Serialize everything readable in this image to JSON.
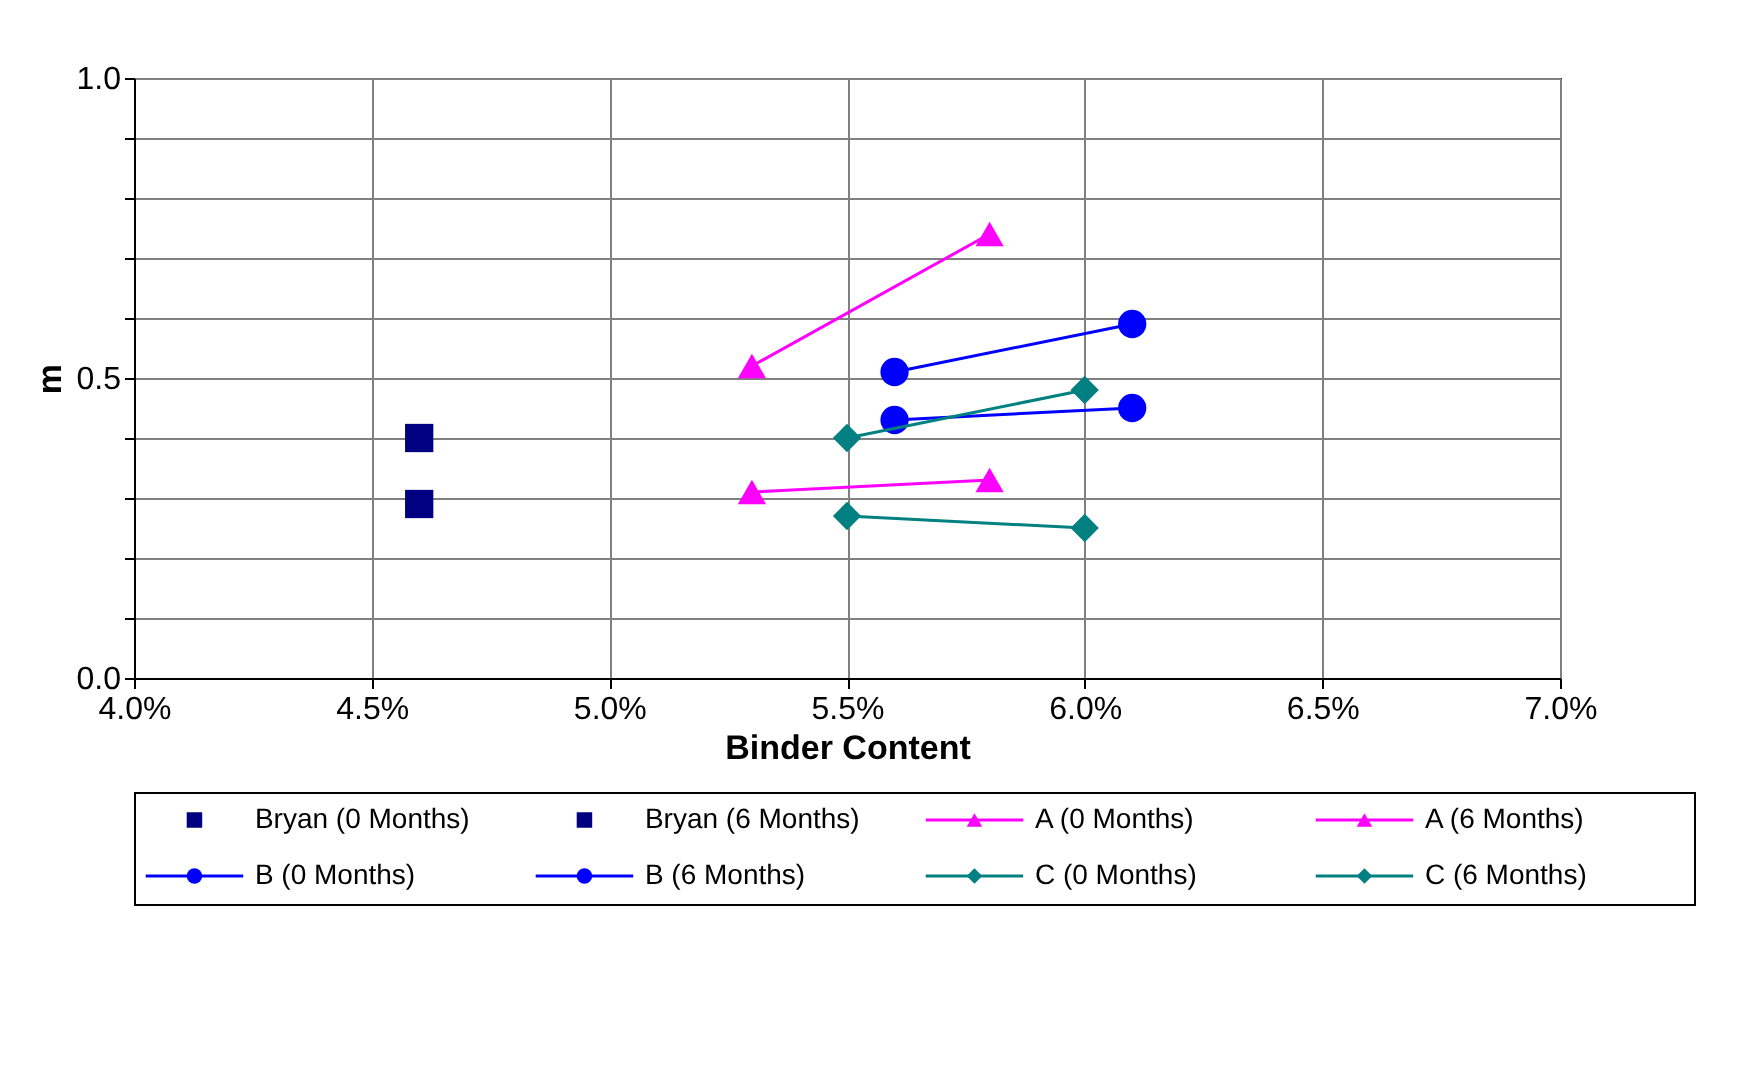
{
  "chart_data": {
    "type": "line",
    "xlabel": "Binder Content",
    "ylabel": "m",
    "xlim": [
      4.0,
      7.0
    ],
    "xticks": [
      {
        "value": 4.0,
        "label": "4.0%"
      },
      {
        "value": 4.5,
        "label": "4.5%"
      },
      {
        "value": 5.0,
        "label": "5.0%"
      },
      {
        "value": 5.5,
        "label": "5.5%"
      },
      {
        "value": 6.0,
        "label": "6.0%"
      },
      {
        "value": 6.5,
        "label": "6.5%"
      },
      {
        "value": 7.0,
        "label": "7.0%"
      }
    ],
    "ylim": [
      0,
      1
    ],
    "yticks": [
      {
        "value": 0.0,
        "label": "0.0"
      },
      {
        "value": 0.1,
        "label": null
      },
      {
        "value": 0.2,
        "label": null
      },
      {
        "value": 0.3,
        "label": null
      },
      {
        "value": 0.4,
        "label": null
      },
      {
        "value": 0.5,
        "label": "0.5"
      },
      {
        "value": 0.6,
        "label": null
      },
      {
        "value": 0.7,
        "label": null
      },
      {
        "value": 0.8,
        "label": null
      },
      {
        "value": 0.9,
        "label": null
      },
      {
        "value": 1.0,
        "label": "1.0"
      }
    ],
    "grid": true,
    "legend": "bottom",
    "line_style": "solid",
    "series": [
      {
        "name": "Bryan (0 Months)",
        "type": "scatter",
        "marker": "square",
        "color": "#000080",
        "x": [
          4.6
        ],
        "values": [
          0.4
        ]
      },
      {
        "name": "Bryan (6 Months)",
        "type": "scatter",
        "marker": "square",
        "color": "#000080",
        "x": [
          4.6
        ],
        "values": [
          0.29
        ]
      },
      {
        "name": "A (0 Months)",
        "marker": "triangle",
        "color": "#ff00ff",
        "x": [
          5.3,
          5.8
        ],
        "values": [
          0.52,
          0.74
        ]
      },
      {
        "name": "A (6 Months)",
        "marker": "triangle",
        "color": "#ff00ff",
        "x": [
          5.3,
          5.8
        ],
        "values": [
          0.31,
          0.33
        ]
      },
      {
        "name": "B (0 Months)",
        "marker": "circle",
        "color": "#0000ff",
        "x": [
          5.6,
          6.1
        ],
        "values": [
          0.51,
          0.59
        ]
      },
      {
        "name": "B (6 Months)",
        "marker": "circle",
        "color": "#0000ff",
        "x": [
          5.6,
          6.1
        ],
        "values": [
          0.43,
          0.45
        ]
      },
      {
        "name": "C (0 Months)",
        "marker": "diamond",
        "color": "#008080",
        "x": [
          5.5,
          6.0
        ],
        "values": [
          0.4,
          0.48
        ]
      },
      {
        "name": "C (6 Months)",
        "marker": "diamond",
        "color": "#008080",
        "x": [
          5.5,
          6.0
        ],
        "values": [
          0.27,
          0.25
        ]
      }
    ]
  }
}
